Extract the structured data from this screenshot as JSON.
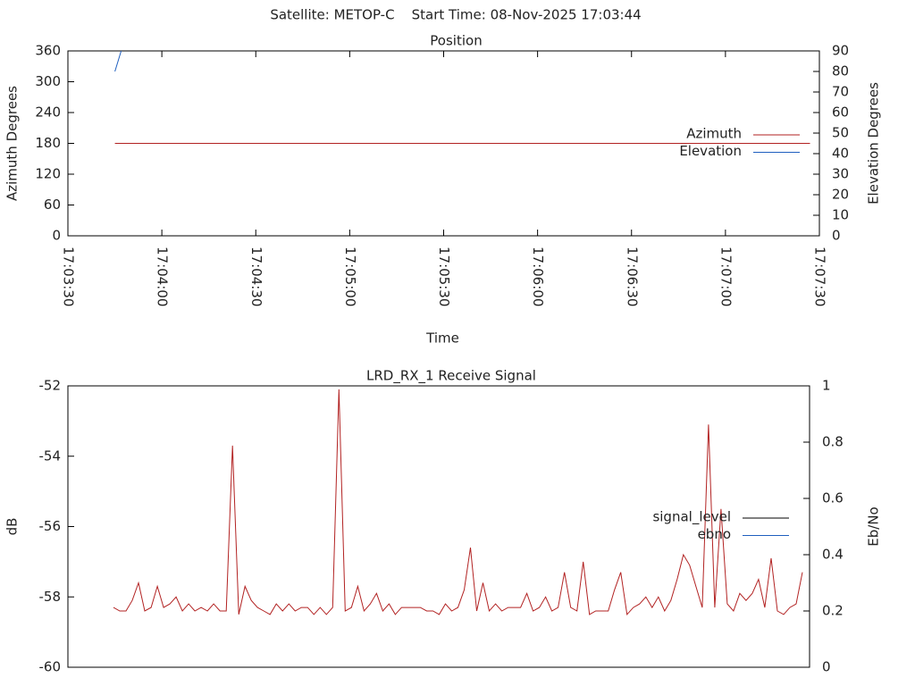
{
  "title": "Satellite: METOP-C    Start Time: 08-Nov-2025 17:03:44",
  "chart_data": [
    {
      "type": "line",
      "title": "Position",
      "xlabel": "Time",
      "ylabel": "Azimuth Degrees",
      "y2label": "Elevation Degrees",
      "xlim": [
        "17:03:30",
        "17:07:30"
      ],
      "xticks": [
        "17:03:30",
        "17:04:00",
        "17:04:30",
        "17:05:00",
        "17:05:30",
        "17:06:00",
        "17:06:30",
        "17:07:00",
        "17:07:30"
      ],
      "ylim": [
        0,
        360
      ],
      "yticks": [
        0,
        60,
        120,
        180,
        240,
        300,
        360
      ],
      "y2lim": [
        0,
        90
      ],
      "y2ticks": [
        0,
        10,
        20,
        30,
        40,
        50,
        60,
        70,
        80,
        90
      ],
      "legend": "right",
      "series": [
        {
          "name": "Azimuth",
          "color": "#b22222",
          "x": [
            "17:03:45",
            "17:07:27"
          ],
          "values": [
            180,
            180
          ]
        },
        {
          "name": "Elevation",
          "color": "#1f5fbf",
          "axis": "y2",
          "x": [
            "17:03:45",
            "17:03:47"
          ],
          "values": [
            80,
            90
          ]
        }
      ]
    },
    {
      "type": "line",
      "title": "LRD_RX_1 Receive Signal",
      "ylabel": "dB",
      "y2label": "Eb/No",
      "ylim": [
        -60,
        -52
      ],
      "yticks": [
        -60,
        -58,
        -56,
        -54,
        -52
      ],
      "y2lim": [
        0,
        1
      ],
      "y2ticks": [
        0,
        0.2,
        0.4,
        0.6,
        0.8,
        1
      ],
      "legend": "right",
      "series": [
        {
          "name": "signal_level",
          "color": "#000000",
          "line_color": "#b22222",
          "values": [
            -58.3,
            -58.4,
            -58.4,
            -58.1,
            -57.6,
            -58.4,
            -58.3,
            -57.7,
            -58.3,
            -58.2,
            -58.0,
            -58.4,
            -58.2,
            -58.4,
            -58.3,
            -58.4,
            -58.2,
            -58.4,
            -58.4,
            -53.7,
            -58.5,
            -57.7,
            -58.1,
            -58.3,
            -58.4,
            -58.5,
            -58.2,
            -58.4,
            -58.2,
            -58.4,
            -58.3,
            -58.3,
            -58.5,
            -58.3,
            -58.5,
            -58.3,
            -52.1,
            -58.4,
            -58.3,
            -57.7,
            -58.4,
            -58.2,
            -57.9,
            -58.4,
            -58.2,
            -58.5,
            -58.3,
            -58.3,
            -58.3,
            -58.3,
            -58.4,
            -58.4,
            -58.5,
            -58.2,
            -58.4,
            -58.3,
            -57.8,
            -56.6,
            -58.4,
            -57.6,
            -58.4,
            -58.2,
            -58.4,
            -58.3,
            -58.3,
            -58.3,
            -57.9,
            -58.4,
            -58.3,
            -58.0,
            -58.4,
            -58.3,
            -57.3,
            -58.3,
            -58.4,
            -57.0,
            -58.5,
            -58.4,
            -58.4,
            -58.4,
            -57.8,
            -57.3,
            -58.5,
            -58.3,
            -58.2,
            -58.0,
            -58.3,
            -58.0,
            -58.4,
            -58.1,
            -57.5,
            -56.8,
            -57.1,
            -57.7,
            -58.3,
            -53.1,
            -58.3,
            -55.5,
            -58.2,
            -58.4,
            -57.9,
            -58.1,
            -57.9,
            -57.5,
            -58.3,
            -56.9,
            -58.4,
            -58.5,
            -58.3,
            -58.2,
            -57.3
          ]
        },
        {
          "name": "ebno",
          "color": "#1f5fbf",
          "axis": "y2",
          "values": [
            null,
            null,
            null,
            null,
            null,
            null,
            null,
            null,
            null,
            null,
            null,
            null,
            null,
            null,
            null,
            null,
            null,
            null,
            null,
            null,
            null,
            null,
            null,
            null,
            null,
            null,
            null,
            null,
            null,
            null,
            null,
            null,
            null,
            null,
            null,
            null,
            null,
            null,
            null,
            null,
            null,
            null,
            null,
            null,
            null,
            null,
            null,
            null,
            null,
            null,
            null,
            null,
            null,
            null,
            null,
            null,
            null,
            null,
            null,
            null,
            null,
            null,
            null,
            null,
            null,
            null,
            null,
            null,
            null,
            null,
            null,
            null,
            null,
            null,
            null,
            null,
            null,
            null,
            null,
            null,
            null,
            null,
            null,
            null,
            null,
            null,
            null,
            null,
            null,
            null,
            null,
            null,
            null,
            null,
            null,
            null,
            null,
            null,
            null,
            null,
            null,
            null,
            null,
            null,
            null,
            null,
            null,
            null,
            null,
            null,
            null
          ]
        }
      ]
    }
  ]
}
